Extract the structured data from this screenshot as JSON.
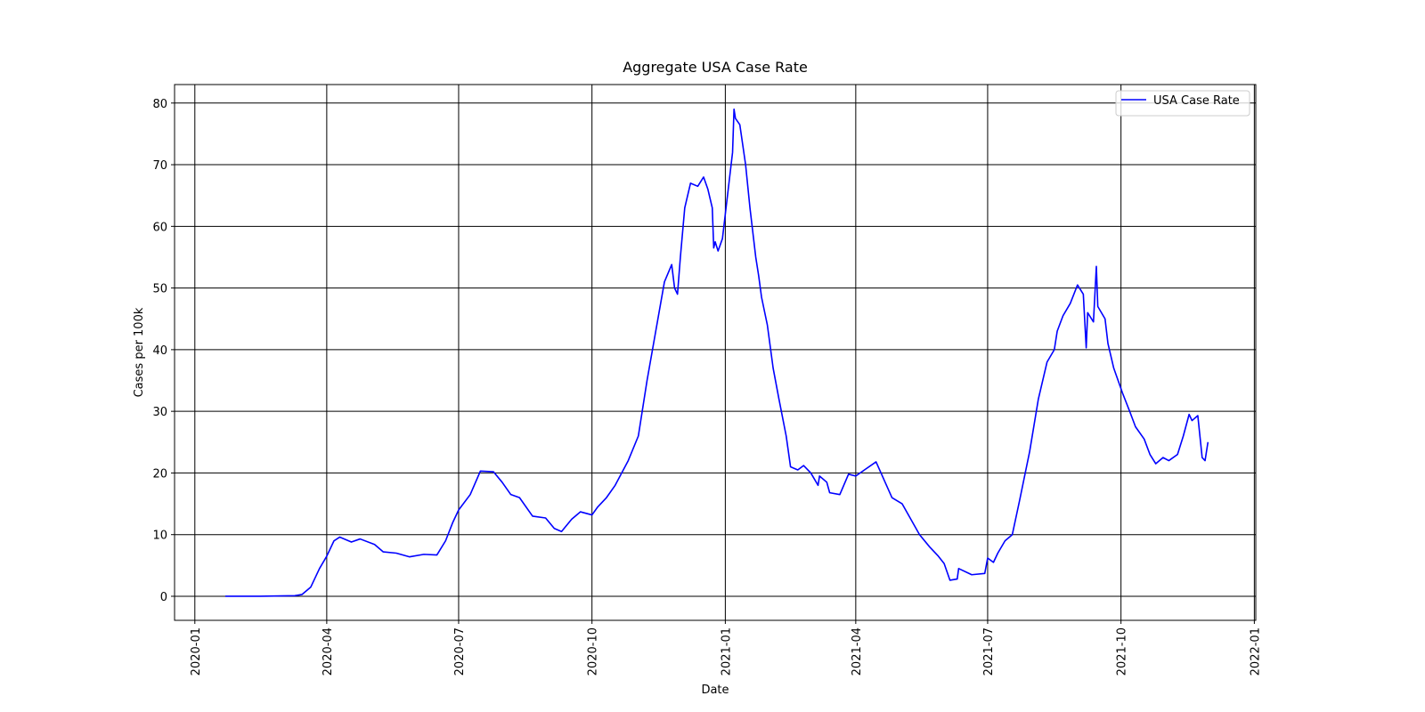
{
  "chart_data": {
    "type": "line",
    "title": "Aggregate USA Case Rate",
    "xlabel": "Date",
    "ylabel": "Cases per 100k",
    "x": [
      "2020-01-22",
      "2020-02-15",
      "2020-03-10",
      "2020-03-15",
      "2020-03-21",
      "2020-03-27",
      "2020-04-01",
      "2020-04-06",
      "2020-04-10",
      "2020-04-18",
      "2020-04-24",
      "2020-05-04",
      "2020-05-10",
      "2020-05-19",
      "2020-05-28",
      "2020-06-07",
      "2020-06-16",
      "2020-06-22",
      "2020-06-27",
      "2020-07-01",
      "2020-07-09",
      "2020-07-16",
      "2020-07-25",
      "2020-07-31",
      "2020-08-06",
      "2020-08-12",
      "2020-08-21",
      "2020-08-30",
      "2020-09-05",
      "2020-09-10",
      "2020-09-17",
      "2020-09-23",
      "2020-10-01",
      "2020-10-05",
      "2020-10-11",
      "2020-10-17",
      "2020-10-26",
      "2020-11-02",
      "2020-11-08",
      "2020-11-14",
      "2020-11-20",
      "2020-11-25",
      "2020-11-27",
      "2020-11-29",
      "2020-12-01",
      "2020-12-04",
      "2020-12-08",
      "2020-12-13",
      "2020-12-17",
      "2020-12-20",
      "2020-12-23",
      "2020-12-24",
      "2020-12-25",
      "2020-12-27",
      "2020-12-30",
      "2021-01-04",
      "2021-01-06",
      "2021-01-07",
      "2021-01-08",
      "2021-01-11",
      "2021-01-15",
      "2021-01-18",
      "2021-01-22",
      "2021-01-24",
      "2021-01-26",
      "2021-01-30",
      "2021-02-03",
      "2021-02-07",
      "2021-02-12",
      "2021-02-15",
      "2021-02-20",
      "2021-02-24",
      "2021-03-01",
      "2021-03-06",
      "2021-03-07",
      "2021-03-12",
      "2021-03-14",
      "2021-03-21",
      "2021-03-27",
      "2021-04-01",
      "2021-04-07",
      "2021-04-15",
      "2021-04-26",
      "2021-05-03",
      "2021-05-09",
      "2021-05-15",
      "2021-05-22",
      "2021-05-28",
      "2021-06-01",
      "2021-06-05",
      "2021-06-10",
      "2021-06-11",
      "2021-06-20",
      "2021-06-29",
      "2021-07-01",
      "2021-07-05",
      "2021-07-08",
      "2021-07-13",
      "2021-07-18",
      "2021-07-23",
      "2021-07-30",
      "2021-08-05",
      "2021-08-11",
      "2021-08-16",
      "2021-08-18",
      "2021-08-22",
      "2021-08-27",
      "2021-09-01",
      "2021-09-05",
      "2021-09-07",
      "2021-09-08",
      "2021-09-12",
      "2021-09-14",
      "2021-09-15",
      "2021-09-20",
      "2021-09-22",
      "2021-09-26",
      "2021-10-02",
      "2021-10-07",
      "2021-10-11",
      "2021-10-17",
      "2021-10-21",
      "2021-10-25",
      "2021-10-30",
      "2021-11-03",
      "2021-11-09",
      "2021-11-13",
      "2021-11-17",
      "2021-11-19",
      "2021-11-23",
      "2021-11-26",
      "2021-11-28",
      "2021-11-30"
    ],
    "series": [
      {
        "name": "USA Case Rate",
        "color": "#0000ff",
        "values": [
          0,
          0,
          0.1,
          0.3,
          1.5,
          4.5,
          6.5,
          9,
          9.6,
          8.8,
          9.3,
          8.4,
          7.2,
          7,
          6.4,
          6.8,
          6.7,
          9,
          12,
          14,
          16.5,
          20.3,
          20.2,
          18.5,
          16.5,
          16,
          13,
          12.7,
          11,
          10.5,
          12.5,
          13.7,
          13.2,
          14.5,
          16,
          18,
          22,
          26,
          35,
          43,
          51,
          53.8,
          50,
          49,
          55,
          63,
          67,
          66.5,
          68,
          66,
          63,
          56.5,
          57.5,
          56,
          58,
          68,
          72,
          79,
          77.5,
          76.5,
          70,
          63,
          55,
          52,
          48.5,
          44,
          37,
          32,
          26,
          21,
          20.5,
          21.2,
          20,
          18,
          19.5,
          18.5,
          16.8,
          16.5,
          19.8,
          19.5,
          20.5,
          21.8,
          16,
          15,
          12.5,
          10,
          8,
          6.5,
          5.3,
          2.6,
          2.8,
          4.5,
          3.5,
          3.7,
          6.2,
          5.5,
          7,
          9,
          10,
          15.5,
          23.5,
          32,
          38,
          40,
          43,
          45.5,
          47.5,
          50.5,
          49,
          40.3,
          46,
          44.5,
          53.5,
          47,
          45,
          41,
          37,
          33,
          30,
          27.5,
          25.5,
          23,
          21.5,
          22.5,
          22,
          23,
          26,
          29.5,
          28.5,
          29.3,
          22.5,
          22,
          25
        ]
      }
    ],
    "xlim": [
      "2019-12-18",
      "2022-01-02"
    ],
    "xticks": [
      "2020-01",
      "2020-04",
      "2020-07",
      "2020-10",
      "2021-01",
      "2021-04",
      "2021-07",
      "2021-10",
      "2022-01"
    ],
    "ylim": [
      -3.9,
      83
    ],
    "yticks": [
      0,
      10,
      20,
      30,
      40,
      50,
      60,
      70,
      80
    ],
    "grid": true,
    "legend": "upper right"
  }
}
